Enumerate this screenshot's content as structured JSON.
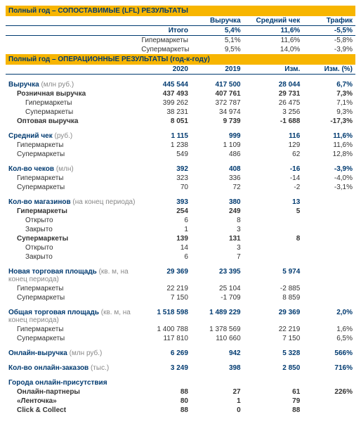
{
  "lfl": {
    "title": "Полный год – СОПОСТАВИМЫЕ (LFL) РЕЗУЛЬТАТЫ",
    "headers": [
      "Выручка",
      "Средний чек",
      "Трафик"
    ],
    "rows": [
      {
        "label": "Итого",
        "v": [
          "5,4%",
          "11,6%",
          "-5,5%"
        ],
        "bold": true,
        "total": true
      },
      {
        "label": "Гипермаркеты",
        "v": [
          "5,1%",
          "11,6%",
          "-5,8%"
        ]
      },
      {
        "label": "Супермаркеты",
        "v": [
          "9,5%",
          "14,0%",
          "-3,9%"
        ]
      }
    ]
  },
  "op": {
    "title": "Полный год – ОПЕРАЦИОННЫЕ РЕЗУЛЬТАТЫ (год-к-году)",
    "headers": [
      "2020",
      "2019",
      "Изм.",
      "Изм. (%)"
    ],
    "groups": [
      {
        "rows": [
          {
            "label": "Выручка",
            "unit": "(млн руб.)",
            "v": [
              "445 544",
              "417 500",
              "28 044",
              "6,7%"
            ],
            "blue": true,
            "bold": true
          },
          {
            "label": "Розничная выручка",
            "v": [
              "437 493",
              "407 761",
              "29 731",
              "7,3%"
            ],
            "bold": true,
            "indent": 1
          },
          {
            "label": "Гипермаркеты",
            "v": [
              "399 262",
              "372 787",
              "26 475",
              "7,1%"
            ],
            "indent": 2
          },
          {
            "label": "Супермаркеты",
            "v": [
              "38 231",
              "34 974",
              "3 256",
              "9,3%"
            ],
            "indent": 2
          },
          {
            "label": "Оптовая выручка",
            "v": [
              "8 051",
              "9 739",
              "-1 688",
              "-17,3%"
            ],
            "bold": true,
            "indent": 1
          }
        ]
      },
      {
        "rows": [
          {
            "label": "Средний чек",
            "unit": "(руб.)",
            "v": [
              "1 115",
              "999",
              "116",
              "11,6%"
            ],
            "blue": true,
            "bold": true
          },
          {
            "label": "Гипермаркеты",
            "v": [
              "1 238",
              "1 109",
              "129",
              "11,6%"
            ],
            "indent": 1
          },
          {
            "label": "Супермаркеты",
            "v": [
              "549",
              "486",
              "62",
              "12,8%"
            ],
            "indent": 1
          }
        ]
      },
      {
        "rows": [
          {
            "label": "Кол-во чеков",
            "unit": "(млн)",
            "v": [
              "392",
              "408",
              "-16",
              "-3,9%"
            ],
            "blue": true,
            "bold": true
          },
          {
            "label": "Гипермаркеты",
            "v": [
              "323",
              "336",
              "-14",
              "-4,0%"
            ],
            "indent": 1
          },
          {
            "label": "Супермаркеты",
            "v": [
              "70",
              "72",
              "-2",
              "-3,1%"
            ],
            "indent": 1
          }
        ]
      },
      {
        "rows": [
          {
            "label": "Кол-во магазинов",
            "unit": "(на конец периода)",
            "v": [
              "393",
              "380",
              "13",
              ""
            ],
            "blue": true,
            "bold": true
          },
          {
            "label": "Гипермаркеты",
            "v": [
              "254",
              "249",
              "5",
              ""
            ],
            "bold": true,
            "indent": 1
          },
          {
            "label": "Открыто",
            "v": [
              "6",
              "8",
              "",
              ""
            ],
            "indent": 2
          },
          {
            "label": "Закрыто",
            "v": [
              "1",
              "3",
              "",
              ""
            ],
            "indent": 2
          },
          {
            "label": "Супермаркеты",
            "v": [
              "139",
              "131",
              "8",
              ""
            ],
            "bold": true,
            "indent": 1
          },
          {
            "label": "Открыто",
            "v": [
              "14",
              "3",
              "",
              ""
            ],
            "indent": 2
          },
          {
            "label": "Закрыто",
            "v": [
              "6",
              "7",
              "",
              ""
            ],
            "indent": 2
          }
        ]
      },
      {
        "rows": [
          {
            "label": "Новая торговая площадь",
            "unit": "(кв. м, на конец периода)",
            "v": [
              "29 369",
              "23 395",
              "5 974",
              ""
            ],
            "blue": true,
            "bold": true
          },
          {
            "label": "Гипермаркеты",
            "v": [
              "22 219",
              "25 104",
              "-2 885",
              ""
            ],
            "indent": 1
          },
          {
            "label": "Супермаркеты",
            "v": [
              "7 150",
              "-1 709",
              "8 859",
              ""
            ],
            "indent": 1
          }
        ]
      },
      {
        "rows": [
          {
            "label": "Общая торговая площадь",
            "unit": "(кв. м, на конец периода)",
            "v": [
              "1 518 598",
              "1 489 229",
              "29 369",
              "2,0%"
            ],
            "blue": true,
            "bold": true
          },
          {
            "label": "Гипермаркеты",
            "v": [
              "1 400 788",
              "1 378 569",
              "22 219",
              "1,6%"
            ],
            "indent": 1
          },
          {
            "label": "Супермаркеты",
            "v": [
              "117 810",
              "110 660",
              "7 150",
              "6,5%"
            ],
            "indent": 1
          }
        ]
      },
      {
        "rows": [
          {
            "label": "Онлайн-выручка",
            "unit": "(млн руб.)",
            "v": [
              "6 269",
              "942",
              "5 328",
              "566%"
            ],
            "blue": true,
            "bold": true
          }
        ]
      },
      {
        "rows": [
          {
            "label": "Кол-во онлайн-заказов",
            "unit": "(тыс.)",
            "v": [
              "3 249",
              "398",
              "2 850",
              "716%"
            ],
            "blue": true,
            "bold": true
          }
        ]
      },
      {
        "rows": [
          {
            "label": "Города онлайн-присутствия",
            "v": [
              "",
              "",
              "",
              ""
            ],
            "blue": true,
            "bold": true
          },
          {
            "label": "Онлайн-партнеры",
            "v": [
              "88",
              "27",
              "61",
              "226%"
            ],
            "bold": true,
            "indent": 1
          },
          {
            "label": "«Ленточка»",
            "v": [
              "80",
              "1",
              "79",
              ""
            ],
            "bold": true,
            "indent": 1
          },
          {
            "label": "Click & Collect",
            "v": [
              "88",
              "0",
              "88",
              ""
            ],
            "bold": true,
            "indent": 1
          }
        ]
      }
    ]
  }
}
